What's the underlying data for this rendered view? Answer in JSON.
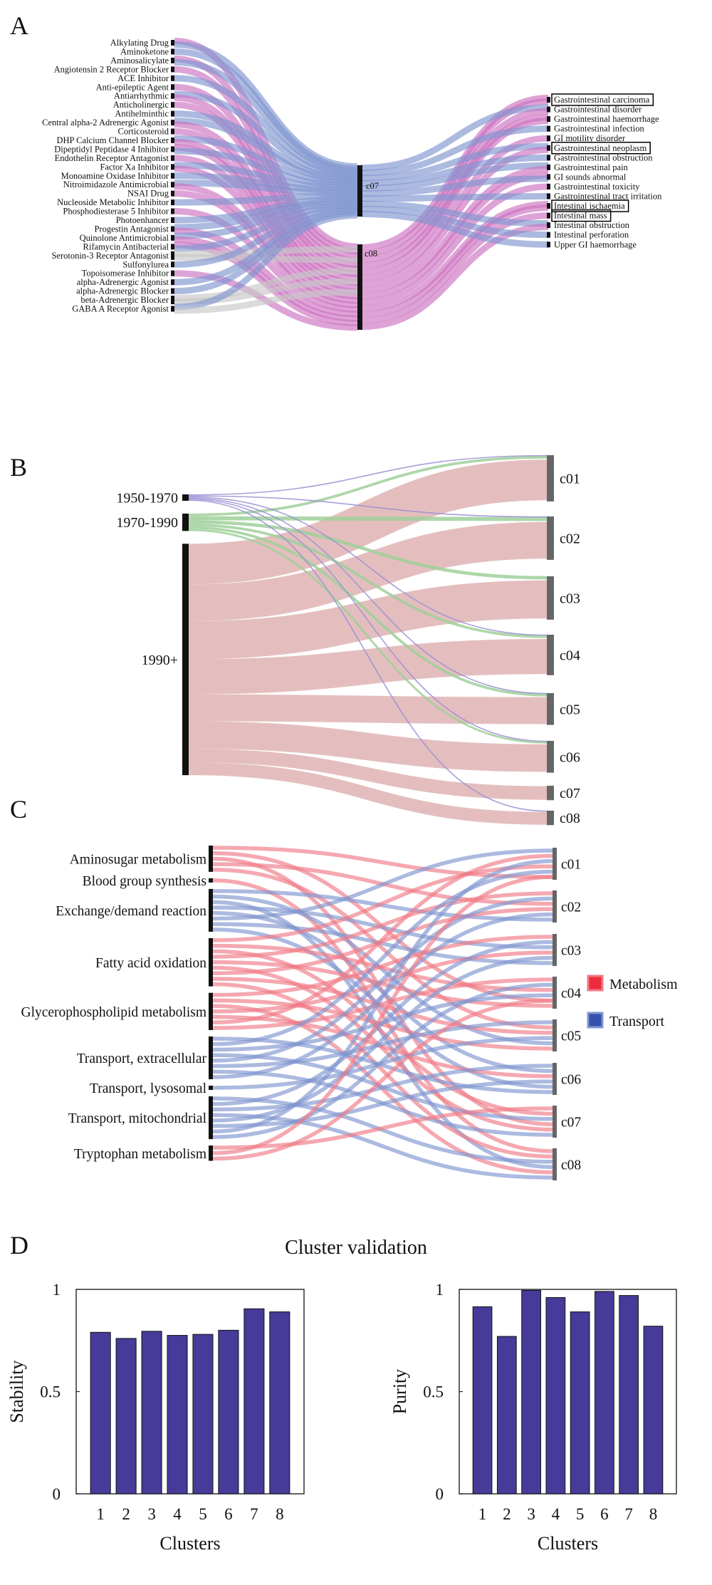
{
  "panels": {
    "a": "A",
    "b": "B",
    "c": "C",
    "d": "D"
  },
  "colors": {
    "blue": "#7f95cf",
    "pink": "#cc72c0",
    "gray": "#c7c7c7",
    "green": "#9fd09a",
    "purple": "#9a8fd3",
    "salmon": "#d9a3a3",
    "red": "#f07a86",
    "bar": "#463b98",
    "node_black": "#111111",
    "node_gray": "#666666"
  },
  "chart_data": [
    {
      "type": "sankey",
      "panel": "A",
      "left_nodes": [
        "Alkylating Drug",
        "Aminoketone",
        "Aminosalicylate",
        "Angiotensin 2 Receptor Blocker",
        "ACE Inhibitor",
        "Anti-epileptic Agent",
        "Antiarrhythmic",
        "Anticholinergic",
        "Antihelminthic",
        "Central alpha-2 Adrenergic Agonist",
        "Corticosteroid",
        "DHP Calcium Channel Blocker",
        "Dipeptidyl Peptidase 4 Inhibitor",
        "Endothelin Receptor Antagonist",
        "Factor Xa Inhibitor",
        "Monoamine Oxidase Inhibitor",
        "Nitroimidazole Antimicrobial",
        "NSAI Drug",
        "Nucleoside Metabolic Inhibitor",
        "Phosphodiesterase 5 Inhibitor",
        "Photoenhancer",
        "Progestin Antagonist",
        "Quinolone Antimicrobial",
        "Rifamycin Antibacterial",
        "Serotonin-3 Receptor Antagonist",
        "Sulfonylurea",
        "Topoisomerase Inhibitor",
        "alpha-Adrenergic Agonist",
        "alpha-Adrenergic Blocker",
        "beta-Adrenergic Blocker",
        "GABA A Receptor Agonist"
      ],
      "middle_nodes": [
        "c07",
        "c08"
      ],
      "right_nodes": [
        "Gastrointestinal carcinoma",
        "Gastrointestinal disorder",
        "Gastrointestinal haemorrhage",
        "Gastrointestinal infection",
        "GI motility disorder",
        "Gastrointestinal neoplasm",
        "Gastrointestinal obstruction",
        "Gastrointestinal pain",
        "GI sounds abnormal",
        "Gastrointestinal toxicity",
        "Gastrointestinal tract irritation",
        "Intestinal ischaemia",
        "Intestinal mass",
        "Intestinal obstruction",
        "Intestinal perforation",
        "Upper GI haemorrhage"
      ],
      "boxed_right_nodes": [
        "Gastrointestinal carcinoma",
        "Gastrointestinal neoplasm",
        "Intestinal ischaemia",
        "Intestinal mass"
      ],
      "left_to_middle": [
        [
          "c08",
          "c07"
        ],
        [
          "c07"
        ],
        [
          "c08",
          "c07"
        ],
        [
          "c08"
        ],
        [
          "c07"
        ],
        [
          "c08"
        ],
        [
          "c07",
          "c08"
        ],
        [
          "c08"
        ],
        [
          "c07"
        ],
        [
          "c07",
          "c08"
        ],
        [
          "c08"
        ],
        [
          "c07",
          "c08"
        ],
        [
          "c08",
          "c07"
        ],
        [
          "c08"
        ],
        [
          "c07",
          "c08"
        ],
        [
          "c07"
        ],
        [
          "c07",
          "c08"
        ],
        [
          "c08"
        ],
        [
          "c07"
        ],
        [
          "c08"
        ],
        [
          "c07"
        ],
        [
          "c07",
          "c08"
        ],
        [
          "c07",
          "c08"
        ],
        [
          "c08",
          "c07"
        ],
        [
          "gray",
          "gray"
        ],
        [
          "c07"
        ],
        [
          "c08"
        ],
        [
          "c07"
        ],
        [
          "c07"
        ],
        [
          "gray",
          "gray"
        ],
        [
          "c07",
          "gray"
        ]
      ],
      "right_from_middle": [
        [
          "c08",
          "c08"
        ],
        [
          "c07",
          "c08"
        ],
        [
          "c08",
          "c08"
        ],
        [
          "c07"
        ],
        [
          "c08"
        ],
        [
          "c07",
          "c08"
        ],
        [
          "c07"
        ],
        [
          "c07",
          "c08"
        ],
        [
          "c08",
          "c07"
        ],
        [
          "c08"
        ],
        [
          "c07"
        ],
        [
          "c08",
          "c08"
        ],
        [
          "c08"
        ],
        [
          "c07",
          "c08"
        ],
        [
          "c07"
        ],
        [
          "c07"
        ]
      ]
    },
    {
      "type": "sankey",
      "panel": "B",
      "left_nodes": [
        {
          "name": "1950-1970",
          "value": 1.0
        },
        {
          "name": "1970-1990",
          "value": 3.0
        },
        {
          "name": "1990+",
          "value": 40.0
        }
      ],
      "right_nodes": [
        {
          "name": "c01",
          "value": 8.0
        },
        {
          "name": "c02",
          "value": 7.5
        },
        {
          "name": "c03",
          "value": 7.5
        },
        {
          "name": "c04",
          "value": 7.0
        },
        {
          "name": "c05",
          "value": 5.5
        },
        {
          "name": "c06",
          "value": 5.5
        },
        {
          "name": "c07",
          "value": 2.5
        },
        {
          "name": "c08",
          "value": 2.5
        }
      ],
      "links": [
        [
          "1950-1970",
          "c01",
          0.15
        ],
        [
          "1950-1970",
          "c02",
          0.15
        ],
        [
          "1950-1970",
          "c04",
          0.15
        ],
        [
          "1950-1970",
          "c05",
          0.15
        ],
        [
          "1950-1970",
          "c06",
          0.15
        ],
        [
          "1950-1970",
          "c08",
          0.15
        ],
        [
          "1970-1990",
          "c01",
          0.4
        ],
        [
          "1970-1990",
          "c02",
          0.6
        ],
        [
          "1970-1990",
          "c03",
          0.5
        ],
        [
          "1970-1990",
          "c04",
          0.4
        ],
        [
          "1970-1990",
          "c05",
          0.4
        ],
        [
          "1970-1990",
          "c06",
          0.3
        ],
        [
          "1990+",
          "c01",
          7.45
        ],
        [
          "1990+",
          "c02",
          6.75
        ],
        [
          "1990+",
          "c03",
          7.0
        ],
        [
          "1990+",
          "c04",
          6.45
        ],
        [
          "1990+",
          "c05",
          4.95
        ],
        [
          "1990+",
          "c06",
          5.05
        ],
        [
          "1990+",
          "c07",
          2.5
        ],
        [
          "1990+",
          "c08",
          2.35
        ]
      ]
    },
    {
      "type": "sankey",
      "panel": "C",
      "left_nodes": [
        {
          "name": "Aminosugar metabolism",
          "count": 5,
          "group": "Metabolism"
        },
        {
          "name": "Blood group synthesis",
          "count": 1,
          "group": "Metabolism"
        },
        {
          "name": "Exchange/demand reaction",
          "count": 8,
          "group": "Transport"
        },
        {
          "name": "Fatty acid oxidation",
          "count": 9,
          "group": "Metabolism"
        },
        {
          "name": "Glycerophospholipid metabolism",
          "count": 7,
          "group": "Metabolism"
        },
        {
          "name": "Transport, extracellular",
          "count": 8,
          "group": "Transport"
        },
        {
          "name": "Transport, lysosomal",
          "count": 1,
          "group": "Transport"
        },
        {
          "name": "Transport, mitochondrial",
          "count": 8,
          "group": "Transport"
        },
        {
          "name": "Tryptophan metabolism",
          "count": 3,
          "group": "Metabolism"
        }
      ],
      "right_nodes": [
        "c01",
        "c02",
        "c03",
        "c04",
        "c05",
        "c06",
        "c07",
        "c08"
      ],
      "legend": [
        {
          "label": "Metabolism",
          "color": "#f07a86",
          "swatch": "#ee2b3c"
        },
        {
          "label": "Transport",
          "color": "#7f95cf",
          "swatch": "#3650ad"
        }
      ]
    },
    {
      "type": "bar",
      "panel": "D",
      "title": "Cluster validation",
      "charts": [
        {
          "ylabel": "Stability",
          "xlabel": "Clusters",
          "categories": [
            "1",
            "2",
            "3",
            "4",
            "5",
            "6",
            "7",
            "8"
          ],
          "values": [
            0.79,
            0.76,
            0.795,
            0.775,
            0.78,
            0.8,
            0.905,
            0.89
          ],
          "ylim": [
            0,
            1
          ],
          "yticks": [
            "0",
            "0.5",
            "1"
          ]
        },
        {
          "ylabel": "Purity",
          "xlabel": "Clusters",
          "categories": [
            "1",
            "2",
            "3",
            "4",
            "5",
            "6",
            "7",
            "8"
          ],
          "values": [
            0.915,
            0.77,
            0.995,
            0.96,
            0.89,
            0.99,
            0.97,
            0.82
          ],
          "ylim": [
            0,
            1
          ],
          "yticks": [
            "0",
            "0.5",
            "1"
          ]
        }
      ]
    }
  ]
}
